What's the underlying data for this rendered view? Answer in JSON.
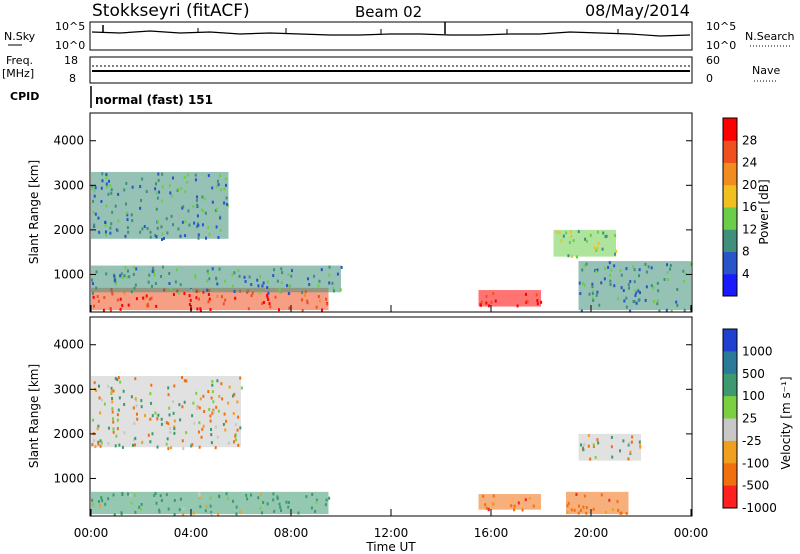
{
  "header": {
    "station": "Stokkseyri (fitACF)",
    "beam": "Beam 02",
    "date": "08/May/2014"
  },
  "strips": {
    "nsky_label": "N.Sky",
    "nsky_tick_top": "10^5",
    "nsky_tick_bottom": "10^0",
    "nsearch_label": "N.Search",
    "nsearch_tick_top": "10^5",
    "nsearch_tick_bottom": "10^0",
    "freq_label": "Freq.",
    "freq_unit": "[MHz]",
    "freq_tick_top": "18",
    "freq_tick_bottom": "8",
    "nave_label": "Nave",
    "nave_tick_top": "60",
    "nave_tick_bottom": "0",
    "cpid_label": "CPID",
    "cpid_value": "normal (fast) 151"
  },
  "axes": {
    "ylabel": "Slant Range [km]",
    "xlabel": "Time UT",
    "yticks": [
      "1000",
      "2000",
      "3000",
      "4000"
    ],
    "xticks": [
      "00:00",
      "04:00",
      "08:00",
      "12:00",
      "16:00",
      "20:00",
      "00:00"
    ]
  },
  "colorbars": {
    "power": {
      "label": "Power [dB]",
      "ticks": [
        "4",
        "8",
        "12",
        "16",
        "20",
        "24",
        "28"
      ],
      "colors": [
        "#1a1aff",
        "#2855c8",
        "#3f8f7a",
        "#6ccd4a",
        "#f0c020",
        "#f08c20",
        "#f05020",
        "#ff0000"
      ]
    },
    "velocity": {
      "label": "Velocity [m s⁻¹]",
      "ticks": [
        "1000",
        "500",
        "100",
        "25",
        "-25",
        "-100",
        "-500",
        "-1000"
      ],
      "colors": [
        "#2040d0",
        "#2a7a9a",
        "#3d9a70",
        "#7ad040",
        "#c8c8c8",
        "#f0a020",
        "#f07010",
        "#ff2020"
      ]
    }
  },
  "chart_data": [
    {
      "type": "heatmap",
      "name": "Power",
      "x_range": [
        "00:00",
        "24:00"
      ],
      "ylim": [
        180,
        4600
      ],
      "colorscale_range": [
        0,
        30
      ],
      "features": [
        {
          "t_start": 0.0,
          "t_end": 9.5,
          "r_min": 200,
          "r_max": 700,
          "value": 26
        },
        {
          "t_start": 0.0,
          "t_end": 10.0,
          "r_min": 600,
          "r_max": 1200,
          "value": 10
        },
        {
          "t_start": 0.0,
          "t_end": 5.5,
          "r_min": 1800,
          "r_max": 3300,
          "value": 9
        },
        {
          "t_start": 15.5,
          "t_end": 18.0,
          "r_min": 280,
          "r_max": 650,
          "value": 28
        },
        {
          "t_start": 18.5,
          "t_end": 21.0,
          "r_min": 1400,
          "r_max": 2000,
          "value": 14
        },
        {
          "t_start": 19.5,
          "t_end": 24.0,
          "r_min": 200,
          "r_max": 1300,
          "value": 9
        }
      ]
    },
    {
      "type": "heatmap",
      "name": "Velocity",
      "x_range": [
        "00:00",
        "24:00"
      ],
      "ylim": [
        180,
        4600
      ],
      "colorscale_range": [
        -1000,
        1000
      ],
      "features": [
        {
          "t_start": 0.0,
          "t_end": 9.5,
          "r_min": 200,
          "r_max": 700,
          "value": 200
        },
        {
          "t_start": 0.0,
          "t_end": 6.0,
          "r_min": 1700,
          "r_max": 3300,
          "value": 0
        },
        {
          "t_start": 15.5,
          "t_end": 18.0,
          "r_min": 300,
          "r_max": 650,
          "value": -300
        },
        {
          "t_start": 19.5,
          "t_end": 22.0,
          "r_min": 1400,
          "r_max": 2000,
          "value": 0
        },
        {
          "t_start": 19.0,
          "t_end": 21.5,
          "r_min": 200,
          "r_max": 700,
          "value": -300
        }
      ]
    }
  ]
}
